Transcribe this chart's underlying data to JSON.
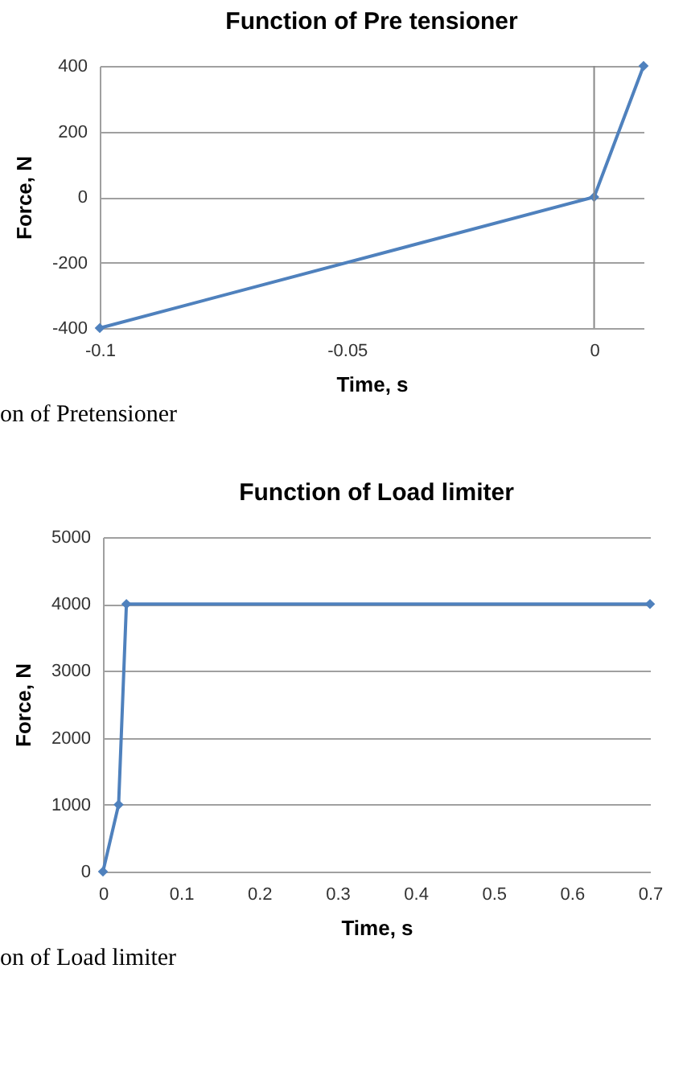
{
  "chart_data": [
    {
      "type": "line",
      "title": "Function of Pre tensioner",
      "xlabel": "Time, s",
      "ylabel": "Force, N",
      "x": [
        -0.1,
        0,
        0.01
      ],
      "series": [
        {
          "color": "#4f81bd",
          "values": [
            -400,
            0,
            400
          ]
        }
      ],
      "xlim": [
        -0.1,
        0.01
      ],
      "xticks": [
        -0.1,
        -0.05,
        0
      ],
      "ylim": [
        -400,
        400
      ],
      "yticks": [
        -400,
        -200,
        0,
        200,
        400
      ],
      "ref_lines": [
        {
          "axis": "x",
          "value": 0,
          "color": "#888888"
        }
      ],
      "grid": "y",
      "marker": "diamond",
      "line_style": "solid",
      "annotations": [
        "on of Pretensioner"
      ]
    },
    {
      "type": "line",
      "title": "Function of Load limiter",
      "xlabel": "Time, s",
      "ylabel": "Force, N",
      "x": [
        0,
        0.02,
        0.03,
        0.7
      ],
      "series": [
        {
          "color": "#4f81bd",
          "values": [
            0,
            1000,
            4000,
            4000
          ]
        }
      ],
      "xlim": [
        0,
        0.7
      ],
      "xticks": [
        0,
        0.1,
        0.2,
        0.3,
        0.4,
        0.5,
        0.6,
        0.7
      ],
      "ylim": [
        0,
        5000
      ],
      "yticks": [
        0,
        1000,
        2000,
        3000,
        4000,
        5000
      ],
      "grid": "y",
      "marker": "diamond",
      "line_style": "solid",
      "annotations": [
        "on of Load limiter"
      ]
    }
  ]
}
